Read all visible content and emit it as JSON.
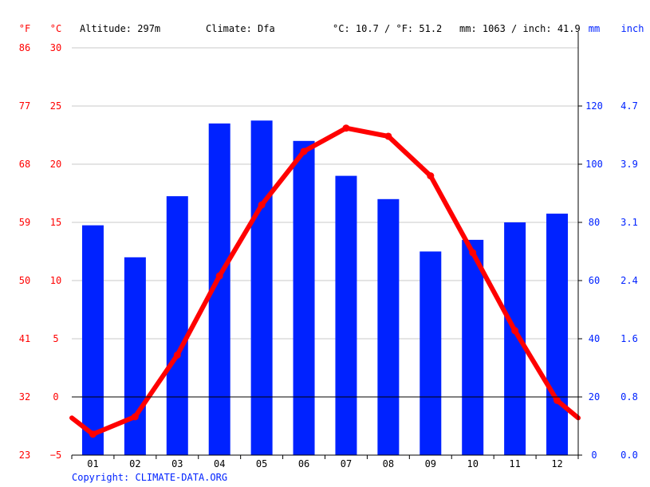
{
  "header": {
    "unit_f": "°F",
    "unit_c": "°C",
    "altitude": "Altitude: 297m",
    "climate": "Climate: Dfa",
    "temp_avg": "°C: 10.7 / °F: 51.2",
    "precip_total": "mm: 1063 / inch: 41.9",
    "unit_mm": "mm",
    "unit_inch": "inch"
  },
  "footer": {
    "copyright": "Copyright: CLIMATE-DATA.ORG"
  },
  "colors": {
    "temperature": "#ff0000",
    "precipitation": "#0022ff",
    "grid": "#c8c8c8",
    "axis": "#000000",
    "text": "#000000"
  },
  "chart_data": {
    "type": "bar",
    "categories": [
      "01",
      "02",
      "03",
      "04",
      "05",
      "06",
      "07",
      "08",
      "09",
      "10",
      "11",
      "12"
    ],
    "left_axis_f_ticks": [
      "86",
      "77",
      "68",
      "59",
      "50",
      "41",
      "32",
      "23"
    ],
    "left_axis_c_ticks": [
      "30",
      "25",
      "20",
      "15",
      "10",
      "5",
      "0",
      "−5"
    ],
    "right_axis_mm_ticks": [
      "120",
      "100",
      "80",
      "60",
      "40",
      "20",
      "0"
    ],
    "right_axis_inch_ticks": [
      "4.7",
      "3.9",
      "3.1",
      "2.4",
      "1.6",
      "0.8",
      "0.0"
    ],
    "ylim_c": [
      -5,
      30
    ],
    "ylim_mm": [
      0,
      140
    ],
    "series": [
      {
        "kind": "bar",
        "axis": "mm",
        "values": [
          79,
          68,
          89,
          114,
          115,
          108,
          96,
          88,
          70,
          74,
          80,
          83
        ]
      },
      {
        "kind": "line",
        "axis": "c",
        "values": [
          -3.2,
          -1.7,
          3.6,
          10.4,
          16.5,
          21.1,
          23.1,
          22.4,
          19.0,
          12.4,
          5.7,
          -0.3
        ],
        "edge_left": -1.8,
        "edge_right": -1.8
      }
    ],
    "grid": true
  }
}
